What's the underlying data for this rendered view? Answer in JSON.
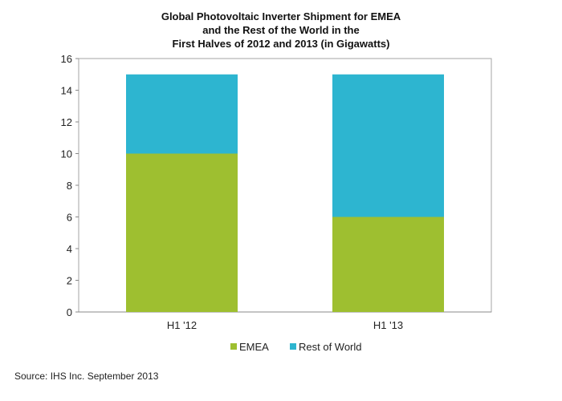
{
  "chart_data": {
    "type": "bar",
    "stacked": true,
    "title_lines": [
      "Global Photovoltaic Inverter Shipment  for EMEA",
      "and the Rest of the World in the",
      "First Halves of 2012 and 2013 (in Gigawatts)"
    ],
    "categories": [
      "H1 '12",
      "H1 '13"
    ],
    "series": [
      {
        "name": "EMEA",
        "values": [
          10,
          6
        ],
        "color": "#9ebf30"
      },
      {
        "name": "Rest of World",
        "values": [
          5,
          9
        ],
        "color": "#2db5d0"
      }
    ],
    "xlabel": "",
    "ylabel": "",
    "ylim": [
      0,
      16
    ],
    "yticks": [
      0,
      2,
      4,
      6,
      8,
      10,
      12,
      14,
      16
    ],
    "grid": false,
    "legend_position": "bottom"
  },
  "source": "Source: IHS Inc. September 2013"
}
